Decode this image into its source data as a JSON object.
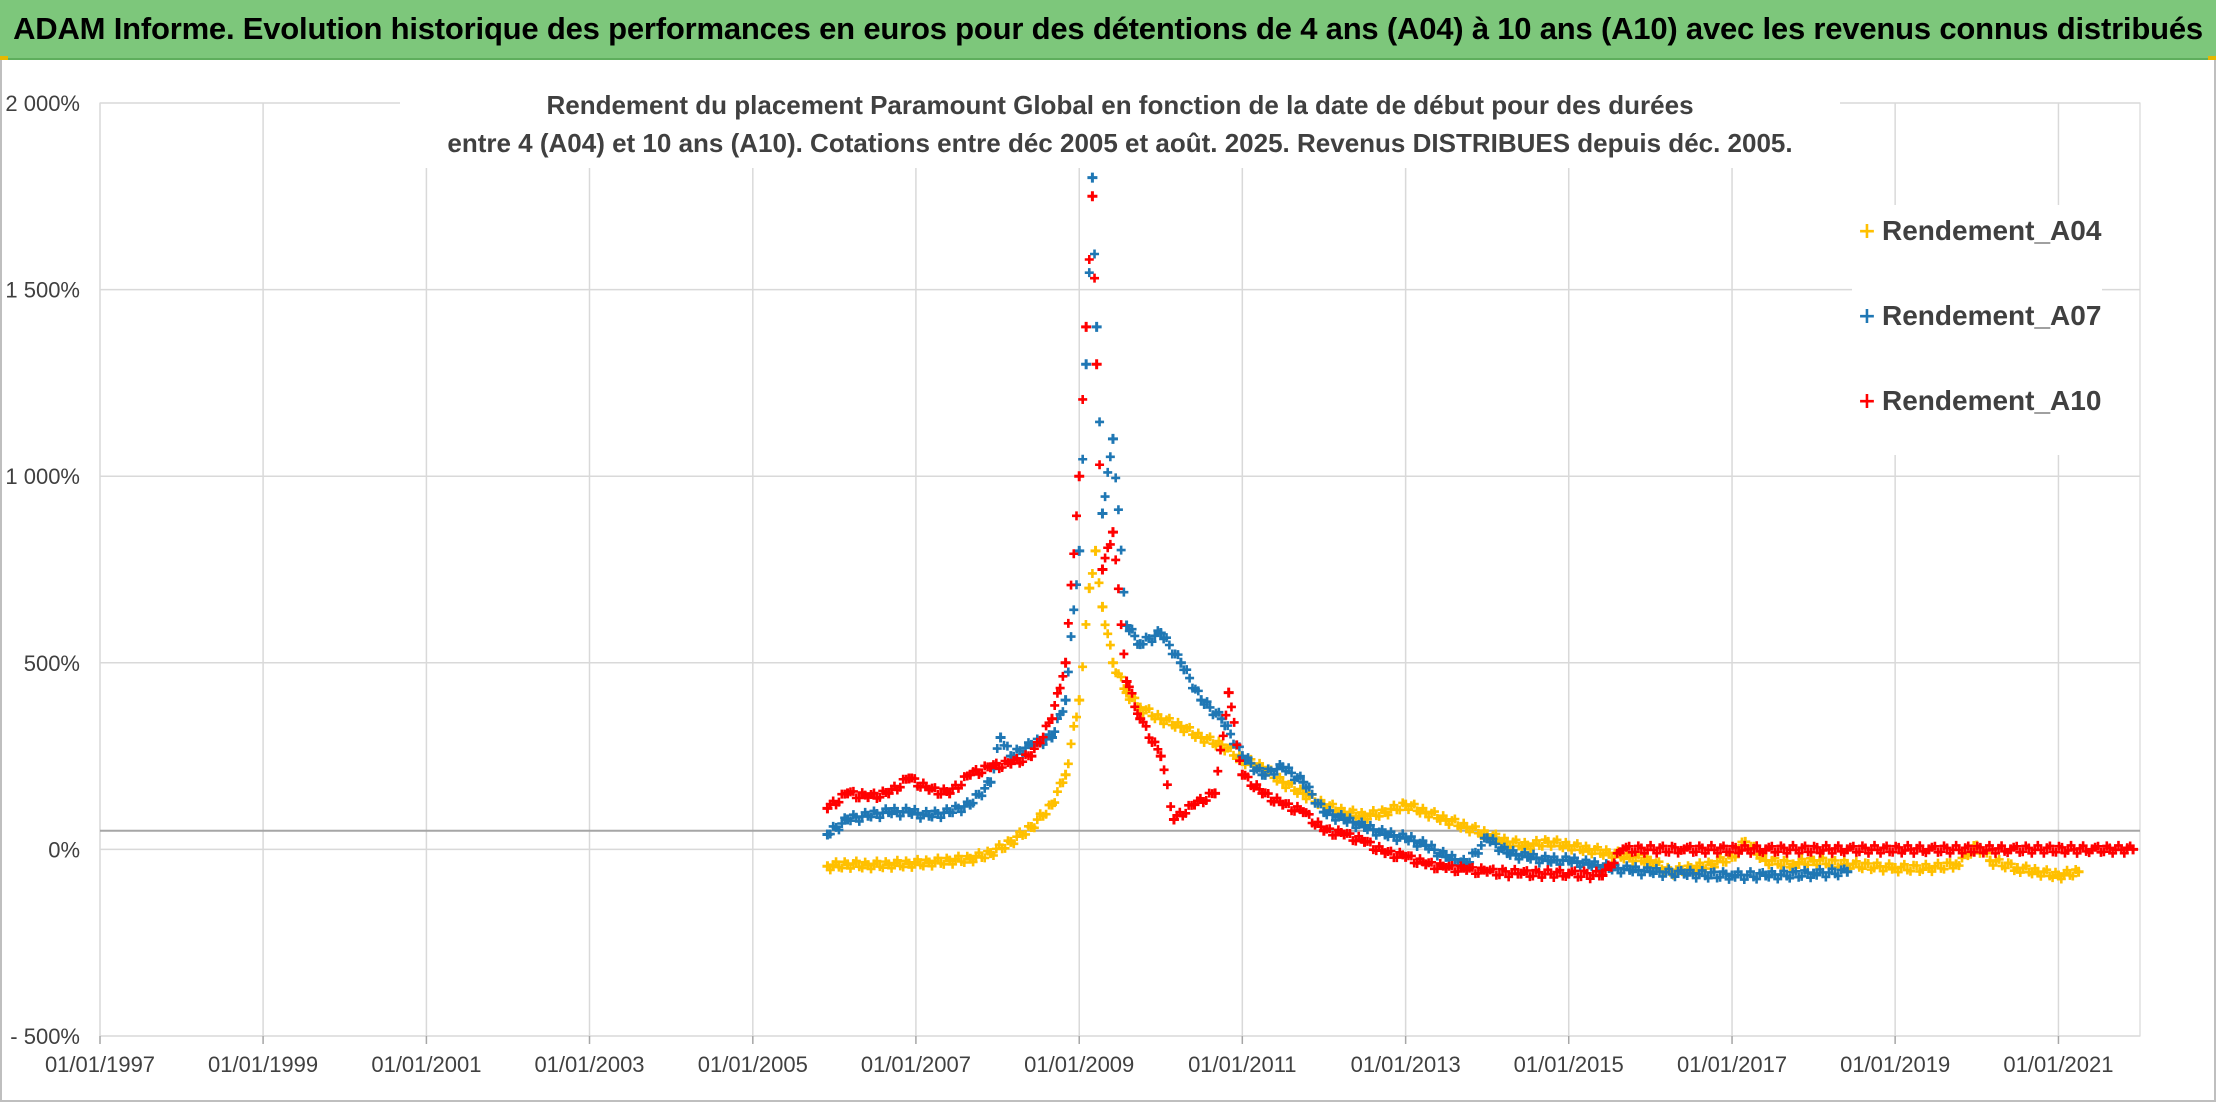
{
  "banner": {
    "title": "ADAM Informe. Evolution historique des performances en euros pour des détentions de 4 ans (A04) à 10 ans (A10) avec les revenus connus distribués"
  },
  "chart_data": {
    "type": "scatter",
    "title_lines": [
      "Rendement du placement Paramount Global en fonction de la date de début pour des durées",
      "entre 4 (A04) et 10 ans (A10). Cotations entre déc 2005 et août. 2025. Revenus DISTRIBUES depuis déc. 2005."
    ],
    "xlabel": "",
    "ylabel": "",
    "x_range": [
      "1997-01-01",
      "2022-01-01"
    ],
    "y_range": [
      -500,
      2000
    ],
    "x_ticks": [
      "01/01/1997",
      "01/01/1999",
      "01/01/2001",
      "01/01/2003",
      "01/01/2005",
      "01/01/2007",
      "01/01/2009",
      "01/01/2011",
      "01/01/2013",
      "01/01/2015",
      "01/01/2017",
      "01/01/2019",
      "01/01/2021"
    ],
    "x_tick_dates": [
      "1997-01-01",
      "1999-01-01",
      "2001-01-01",
      "2003-01-01",
      "2005-01-01",
      "2007-01-01",
      "2009-01-01",
      "2011-01-01",
      "2013-01-01",
      "2015-01-01",
      "2017-01-01",
      "2019-01-01",
      "2021-01-01"
    ],
    "y_ticks": [
      "- 500%",
      "0%",
      "500%",
      "1 000%",
      "1 500%",
      "2 000%"
    ],
    "y_tick_values": [
      -500,
      0,
      500,
      1000,
      1500,
      2000
    ],
    "grid": true,
    "legend_position": "top-right",
    "marker": "+",
    "series": [
      {
        "name": "Rendement_A04",
        "color": "#ffc000",
        "points": [
          [
            "2005-12-01",
            -45
          ],
          [
            "2006-03-01",
            -40
          ],
          [
            "2006-06-01",
            -42
          ],
          [
            "2006-09-01",
            -40
          ],
          [
            "2006-12-01",
            -38
          ],
          [
            "2007-03-01",
            -35
          ],
          [
            "2007-06-01",
            -30
          ],
          [
            "2007-09-01",
            -25
          ],
          [
            "2007-12-01",
            -10
          ],
          [
            "2008-03-01",
            20
          ],
          [
            "2008-06-01",
            60
          ],
          [
            "2008-09-01",
            120
          ],
          [
            "2008-11-01",
            200
          ],
          [
            "2009-01-01",
            400
          ],
          [
            "2009-02-15",
            700
          ],
          [
            "2009-03-15",
            800
          ],
          [
            "2009-04-15",
            650
          ],
          [
            "2009-06-01",
            500
          ],
          [
            "2009-08-01",
            420
          ],
          [
            "2009-10-01",
            380
          ],
          [
            "2010-01-01",
            350
          ],
          [
            "2010-04-01",
            330
          ],
          [
            "2010-07-01",
            300
          ],
          [
            "2010-10-01",
            280
          ],
          [
            "2011-01-01",
            240
          ],
          [
            "2011-04-01",
            220
          ],
          [
            "2011-07-01",
            180
          ],
          [
            "2011-10-01",
            150
          ],
          [
            "2012-01-01",
            120
          ],
          [
            "2012-04-01",
            100
          ],
          [
            "2012-07-01",
            90
          ],
          [
            "2012-10-01",
            100
          ],
          [
            "2013-01-01",
            120
          ],
          [
            "2013-04-01",
            100
          ],
          [
            "2013-07-01",
            80
          ],
          [
            "2013-10-01",
            60
          ],
          [
            "2014-01-01",
            40
          ],
          [
            "2014-04-01",
            20
          ],
          [
            "2014-07-01",
            10
          ],
          [
            "2014-10-01",
            20
          ],
          [
            "2015-01-01",
            10
          ],
          [
            "2015-04-01",
            0
          ],
          [
            "2015-07-01",
            -10
          ],
          [
            "2015-10-01",
            -20
          ],
          [
            "2016-01-01",
            -30
          ],
          [
            "2016-04-01",
            -60
          ],
          [
            "2016-07-01",
            -50
          ],
          [
            "2016-10-01",
            -40
          ],
          [
            "2017-01-01",
            -20
          ],
          [
            "2017-03-01",
            20
          ],
          [
            "2017-06-01",
            -30
          ],
          [
            "2017-10-01",
            -40
          ],
          [
            "2018-01-01",
            -30
          ],
          [
            "2018-06-01",
            -40
          ],
          [
            "2019-01-01",
            -50
          ],
          [
            "2019-06-01",
            -50
          ],
          [
            "2019-10-01",
            -40
          ],
          [
            "2020-01-01",
            10
          ],
          [
            "2020-03-01",
            -30
          ],
          [
            "2020-07-01",
            -50
          ],
          [
            "2020-10-01",
            -60
          ],
          [
            "2021-01-01",
            -70
          ],
          [
            "2021-04-01",
            -60
          ]
        ]
      },
      {
        "name": "Rendement_A07",
        "color": "#1f77b4",
        "points": [
          [
            "2005-12-01",
            40
          ],
          [
            "2006-03-01",
            80
          ],
          [
            "2006-06-01",
            90
          ],
          [
            "2006-09-01",
            100
          ],
          [
            "2006-12-01",
            100
          ],
          [
            "2007-03-01",
            90
          ],
          [
            "2007-06-01",
            100
          ],
          [
            "2007-09-01",
            120
          ],
          [
            "2007-12-01",
            180
          ],
          [
            "2008-01-15",
            300
          ],
          [
            "2008-03-01",
            250
          ],
          [
            "2008-06-01",
            280
          ],
          [
            "2008-09-01",
            300
          ],
          [
            "2008-11-01",
            400
          ],
          [
            "2009-01-01",
            800
          ],
          [
            "2009-02-01",
            1300
          ],
          [
            "2009-03-01",
            1800
          ],
          [
            "2009-03-20",
            1400
          ],
          [
            "2009-04-15",
            900
          ],
          [
            "2009-06-01",
            1100
          ],
          [
            "2009-08-01",
            600
          ],
          [
            "2009-10-01",
            550
          ],
          [
            "2010-01-01",
            580
          ],
          [
            "2010-04-01",
            500
          ],
          [
            "2010-07-01",
            400
          ],
          [
            "2010-10-01",
            350
          ],
          [
            "2011-01-01",
            250
          ],
          [
            "2011-04-01",
            200
          ],
          [
            "2011-07-01",
            220
          ],
          [
            "2011-10-01",
            180
          ],
          [
            "2012-01-01",
            100
          ],
          [
            "2012-04-01",
            80
          ],
          [
            "2012-07-01",
            60
          ],
          [
            "2012-10-01",
            40
          ],
          [
            "2013-01-01",
            30
          ],
          [
            "2013-04-01",
            10
          ],
          [
            "2013-07-01",
            -20
          ],
          [
            "2013-10-01",
            -40
          ],
          [
            "2014-01-01",
            30
          ],
          [
            "2014-04-01",
            -10
          ],
          [
            "2014-07-01",
            -20
          ],
          [
            "2014-10-01",
            -30
          ],
          [
            "2015-01-01",
            -30
          ],
          [
            "2015-04-01",
            -40
          ],
          [
            "2015-07-01",
            -50
          ],
          [
            "2015-10-01",
            -55
          ],
          [
            "2016-01-01",
            -60
          ],
          [
            "2016-06-01",
            -65
          ],
          [
            "2017-01-01",
            -70
          ],
          [
            "2017-06-01",
            -70
          ],
          [
            "2018-01-01",
            -65
          ],
          [
            "2018-06-01",
            -60
          ]
        ]
      },
      {
        "name": "Rendement_A10",
        "color": "#ff0000",
        "points": [
          [
            "2005-12-01",
            110
          ],
          [
            "2006-03-01",
            150
          ],
          [
            "2006-06-01",
            140
          ],
          [
            "2006-09-01",
            150
          ],
          [
            "2006-12-01",
            190
          ],
          [
            "2007-03-01",
            160
          ],
          [
            "2007-06-01",
            150
          ],
          [
            "2007-09-01",
            200
          ],
          [
            "2007-12-01",
            220
          ],
          [
            "2008-03-01",
            230
          ],
          [
            "2008-06-01",
            250
          ],
          [
            "2008-09-01",
            350
          ],
          [
            "2008-11-01",
            500
          ],
          [
            "2009-01-01",
            1000
          ],
          [
            "2009-02-01",
            1400
          ],
          [
            "2009-03-01",
            1750
          ],
          [
            "2009-03-20",
            1300
          ],
          [
            "2009-04-15",
            750
          ],
          [
            "2009-06-01",
            850
          ],
          [
            "2009-08-01",
            450
          ],
          [
            "2009-10-01",
            350
          ],
          [
            "2010-01-01",
            250
          ],
          [
            "2010-03-01",
            80
          ],
          [
            "2010-06-01",
            120
          ],
          [
            "2010-09-01",
            150
          ],
          [
            "2010-11-01",
            420
          ],
          [
            "2011-01-01",
            200
          ],
          [
            "2011-04-01",
            150
          ],
          [
            "2011-07-01",
            120
          ],
          [
            "2011-10-01",
            100
          ],
          [
            "2012-01-01",
            50
          ],
          [
            "2012-04-01",
            40
          ],
          [
            "2012-07-01",
            20
          ],
          [
            "2012-10-01",
            -10
          ],
          [
            "2013-01-01",
            -20
          ],
          [
            "2013-04-01",
            -40
          ],
          [
            "2013-07-01",
            -50
          ],
          [
            "2013-10-01",
            -55
          ],
          [
            "2014-01-01",
            -60
          ],
          [
            "2014-06-01",
            -65
          ],
          [
            "2015-01-01",
            -65
          ],
          [
            "2015-06-01",
            -70
          ],
          [
            "2015-09-01",
            0
          ],
          [
            "2016-06-01",
            0
          ],
          [
            "2017-06-01",
            0
          ],
          [
            "2018-06-01",
            0
          ],
          [
            "2019-06-01",
            0
          ],
          [
            "2020-06-01",
            0
          ],
          [
            "2021-06-01",
            0
          ],
          [
            "2021-12-01",
            0
          ]
        ]
      }
    ]
  }
}
